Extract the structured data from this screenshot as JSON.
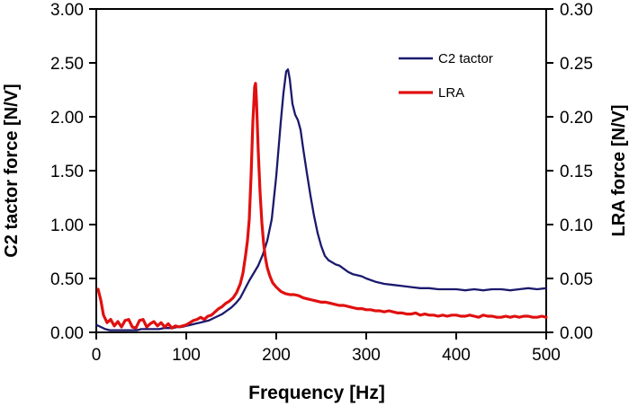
{
  "figure": {
    "background": "#ffffff",
    "frame_color": "#000000"
  },
  "chart_data": {
    "type": "line",
    "title": "",
    "xlabel": "Frequency [Hz]",
    "ylabel_left": "C2 tactor force [N/V]",
    "ylabel_right": "LRA force [N/V]",
    "grid": false,
    "legend_position": "upper-right-inside",
    "x_range": [
      0,
      500
    ],
    "x_ticks": [
      "0",
      "100",
      "200",
      "300",
      "400",
      "500"
    ],
    "y_left_range": [
      0,
      3.0
    ],
    "y_left_ticks": [
      "0.00",
      "0.50",
      "1.00",
      "1.50",
      "2.00",
      "2.50",
      "3.00"
    ],
    "y_right_range": [
      0,
      0.3
    ],
    "y_right_ticks": [
      "0.00",
      "0.05",
      "0.10",
      "0.15",
      "0.20",
      "0.25",
      "0.30"
    ],
    "series": [
      {
        "name": "C2 tactor",
        "axis": "left",
        "units": "N/V",
        "color": "#1a1a6e",
        "line_width": 2.3,
        "peak": {
          "frequency_hz": 213,
          "value": 2.44
        },
        "points": [
          [
            0,
            0.07
          ],
          [
            5,
            0.05
          ],
          [
            10,
            0.03
          ],
          [
            15,
            0.02
          ],
          [
            20,
            0.02
          ],
          [
            25,
            0.02
          ],
          [
            30,
            0.02
          ],
          [
            35,
            0.02
          ],
          [
            40,
            0.02
          ],
          [
            45,
            0.02
          ],
          [
            50,
            0.03
          ],
          [
            55,
            0.03
          ],
          [
            60,
            0.03
          ],
          [
            65,
            0.03
          ],
          [
            70,
            0.03
          ],
          [
            75,
            0.04
          ],
          [
            80,
            0.04
          ],
          [
            85,
            0.04
          ],
          [
            90,
            0.05
          ],
          [
            95,
            0.05
          ],
          [
            100,
            0.06
          ],
          [
            105,
            0.07
          ],
          [
            110,
            0.08
          ],
          [
            115,
            0.09
          ],
          [
            120,
            0.1
          ],
          [
            125,
            0.11
          ],
          [
            130,
            0.13
          ],
          [
            135,
            0.15
          ],
          [
            140,
            0.17
          ],
          [
            145,
            0.2
          ],
          [
            150,
            0.23
          ],
          [
            155,
            0.27
          ],
          [
            160,
            0.32
          ],
          [
            165,
            0.4
          ],
          [
            170,
            0.48
          ],
          [
            175,
            0.55
          ],
          [
            180,
            0.62
          ],
          [
            185,
            0.72
          ],
          [
            190,
            0.85
          ],
          [
            195,
            1.05
          ],
          [
            200,
            1.45
          ],
          [
            205,
            1.95
          ],
          [
            208,
            2.22
          ],
          [
            211,
            2.42
          ],
          [
            213,
            2.44
          ],
          [
            215,
            2.35
          ],
          [
            218,
            2.12
          ],
          [
            221,
            2.02
          ],
          [
            224,
            1.97
          ],
          [
            227,
            1.88
          ],
          [
            230,
            1.7
          ],
          [
            234,
            1.48
          ],
          [
            238,
            1.27
          ],
          [
            242,
            1.08
          ],
          [
            246,
            0.92
          ],
          [
            250,
            0.8
          ],
          [
            254,
            0.71
          ],
          [
            258,
            0.67
          ],
          [
            262,
            0.65
          ],
          [
            266,
            0.63
          ],
          [
            270,
            0.62
          ],
          [
            275,
            0.59
          ],
          [
            280,
            0.56
          ],
          [
            285,
            0.54
          ],
          [
            290,
            0.53
          ],
          [
            295,
            0.52
          ],
          [
            300,
            0.5
          ],
          [
            310,
            0.47
          ],
          [
            320,
            0.45
          ],
          [
            330,
            0.44
          ],
          [
            340,
            0.43
          ],
          [
            350,
            0.42
          ],
          [
            360,
            0.41
          ],
          [
            370,
            0.41
          ],
          [
            380,
            0.4
          ],
          [
            390,
            0.4
          ],
          [
            400,
            0.4
          ],
          [
            410,
            0.39
          ],
          [
            420,
            0.4
          ],
          [
            430,
            0.39
          ],
          [
            440,
            0.4
          ],
          [
            450,
            0.4
          ],
          [
            460,
            0.39
          ],
          [
            470,
            0.4
          ],
          [
            480,
            0.41
          ],
          [
            490,
            0.4
          ],
          [
            500,
            0.41
          ]
        ]
      },
      {
        "name": "LRA",
        "axis": "right",
        "units": "N/V",
        "color": "#e01010",
        "line_width": 3.2,
        "peak": {
          "frequency_hz": 177,
          "value": 0.231
        },
        "points": [
          [
            2,
            0.04
          ],
          [
            5,
            0.03
          ],
          [
            8,
            0.016
          ],
          [
            12,
            0.009
          ],
          [
            16,
            0.012
          ],
          [
            20,
            0.006
          ],
          [
            24,
            0.01
          ],
          [
            28,
            0.005
          ],
          [
            32,
            0.011
          ],
          [
            36,
            0.012
          ],
          [
            40,
            0.005
          ],
          [
            44,
            0.004
          ],
          [
            48,
            0.011
          ],
          [
            52,
            0.012
          ],
          [
            56,
            0.005
          ],
          [
            60,
            0.008
          ],
          [
            64,
            0.01
          ],
          [
            68,
            0.006
          ],
          [
            72,
            0.009
          ],
          [
            76,
            0.005
          ],
          [
            80,
            0.008
          ],
          [
            84,
            0.004
          ],
          [
            88,
            0.006
          ],
          [
            92,
            0.005
          ],
          [
            96,
            0.006
          ],
          [
            100,
            0.007
          ],
          [
            104,
            0.009
          ],
          [
            108,
            0.011
          ],
          [
            112,
            0.012
          ],
          [
            116,
            0.014
          ],
          [
            120,
            0.012
          ],
          [
            124,
            0.015
          ],
          [
            128,
            0.016
          ],
          [
            132,
            0.019
          ],
          [
            136,
            0.022
          ],
          [
            140,
            0.024
          ],
          [
            144,
            0.027
          ],
          [
            148,
            0.029
          ],
          [
            152,
            0.032
          ],
          [
            156,
            0.037
          ],
          [
            160,
            0.045
          ],
          [
            163,
            0.055
          ],
          [
            166,
            0.072
          ],
          [
            168,
            0.085
          ],
          [
            170,
            0.105
          ],
          [
            172,
            0.145
          ],
          [
            174,
            0.195
          ],
          [
            176,
            0.228
          ],
          [
            177,
            0.231
          ],
          [
            178,
            0.215
          ],
          [
            180,
            0.168
          ],
          [
            182,
            0.13
          ],
          [
            184,
            0.102
          ],
          [
            186,
            0.082
          ],
          [
            188,
            0.069
          ],
          [
            190,
            0.06
          ],
          [
            193,
            0.052
          ],
          [
            196,
            0.046
          ],
          [
            200,
            0.042
          ],
          [
            205,
            0.038
          ],
          [
            210,
            0.036
          ],
          [
            215,
            0.035
          ],
          [
            220,
            0.035
          ],
          [
            225,
            0.034
          ],
          [
            230,
            0.032
          ],
          [
            235,
            0.031
          ],
          [
            240,
            0.03
          ],
          [
            245,
            0.029
          ],
          [
            250,
            0.028
          ],
          [
            255,
            0.028
          ],
          [
            260,
            0.027
          ],
          [
            265,
            0.026
          ],
          [
            270,
            0.025
          ],
          [
            275,
            0.025
          ],
          [
            280,
            0.024
          ],
          [
            285,
            0.023
          ],
          [
            290,
            0.022
          ],
          [
            295,
            0.022
          ],
          [
            300,
            0.021
          ],
          [
            305,
            0.021
          ],
          [
            310,
            0.02
          ],
          [
            315,
            0.02
          ],
          [
            320,
            0.019
          ],
          [
            325,
            0.02
          ],
          [
            330,
            0.019
          ],
          [
            335,
            0.018
          ],
          [
            340,
            0.018
          ],
          [
            345,
            0.017
          ],
          [
            350,
            0.017
          ],
          [
            355,
            0.018
          ],
          [
            360,
            0.016
          ],
          [
            365,
            0.017
          ],
          [
            370,
            0.016
          ],
          [
            375,
            0.016
          ],
          [
            380,
            0.015
          ],
          [
            385,
            0.016
          ],
          [
            390,
            0.015
          ],
          [
            395,
            0.016
          ],
          [
            400,
            0.016
          ],
          [
            405,
            0.015
          ],
          [
            410,
            0.015
          ],
          [
            415,
            0.016
          ],
          [
            420,
            0.015
          ],
          [
            425,
            0.014
          ],
          [
            430,
            0.016
          ],
          [
            435,
            0.015
          ],
          [
            440,
            0.015
          ],
          [
            445,
            0.014
          ],
          [
            450,
            0.014
          ],
          [
            455,
            0.015
          ],
          [
            460,
            0.014
          ],
          [
            465,
            0.015
          ],
          [
            470,
            0.014
          ],
          [
            475,
            0.015
          ],
          [
            480,
            0.015
          ],
          [
            485,
            0.014
          ],
          [
            490,
            0.014
          ],
          [
            495,
            0.015
          ],
          [
            500,
            0.014
          ]
        ]
      }
    ]
  },
  "legend": {
    "items": [
      {
        "label": "C2 tactor",
        "color": "#1a1a6e"
      },
      {
        "label": "LRA",
        "color": "#e01010"
      }
    ]
  }
}
